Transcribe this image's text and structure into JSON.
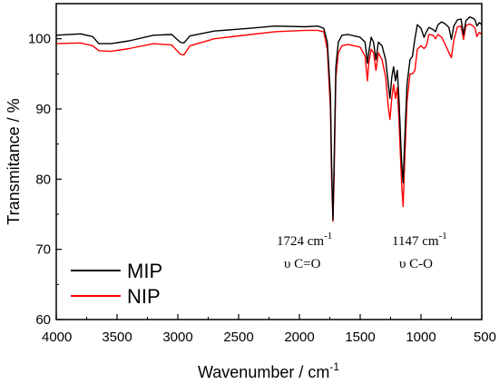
{
  "chart_data": {
    "type": "line",
    "xlabel": "Wavenumber / cm",
    "xlabel_sup": "-1",
    "ylabel": "Transmitance / %",
    "xlim": [
      4000,
      500
    ],
    "ylim": [
      60,
      105
    ],
    "x_ticks": [
      4000,
      3500,
      3000,
      2500,
      2000,
      1500,
      1000,
      500
    ],
    "y_ticks": [
      60,
      70,
      80,
      90,
      100
    ],
    "grid": false,
    "legend_position": "bottom-left",
    "series": [
      {
        "name": "MIP",
        "color": "#000000",
        "points": [
          [
            4000,
            100.5
          ],
          [
            3800,
            100.7
          ],
          [
            3700,
            100.3
          ],
          [
            3650,
            99.3
          ],
          [
            3550,
            99.3
          ],
          [
            3400,
            99.7
          ],
          [
            3200,
            100.5
          ],
          [
            3050,
            100.6
          ],
          [
            2980,
            99.5
          ],
          [
            2950,
            99.4
          ],
          [
            2900,
            100.4
          ],
          [
            2700,
            101.1
          ],
          [
            2400,
            101.5
          ],
          [
            2200,
            101.8
          ],
          [
            1950,
            101.7
          ],
          [
            1850,
            101.8
          ],
          [
            1800,
            101.5
          ],
          [
            1770,
            99.5
          ],
          [
            1745,
            92.0
          ],
          [
            1735,
            82.0
          ],
          [
            1724,
            74.2
          ],
          [
            1715,
            82.0
          ],
          [
            1700,
            96.0
          ],
          [
            1680,
            99.5
          ],
          [
            1650,
            100.5
          ],
          [
            1600,
            100.6
          ],
          [
            1500,
            100.2
          ],
          [
            1460,
            99.5
          ],
          [
            1440,
            96.5
          ],
          [
            1430,
            98.0
          ],
          [
            1410,
            100.2
          ],
          [
            1390,
            99.5
          ],
          [
            1370,
            97.0
          ],
          [
            1350,
            99.5
          ],
          [
            1320,
            99.0
          ],
          [
            1290,
            97.0
          ],
          [
            1270,
            93.8
          ],
          [
            1255,
            91.5
          ],
          [
            1240,
            94.5
          ],
          [
            1225,
            96.0
          ],
          [
            1210,
            94.0
          ],
          [
            1195,
            95.5
          ],
          [
            1180,
            91.0
          ],
          [
            1160,
            82.5
          ],
          [
            1147,
            79.5
          ],
          [
            1135,
            85.0
          ],
          [
            1115,
            93.5
          ],
          [
            1090,
            97.0
          ],
          [
            1070,
            97.5
          ],
          [
            1050,
            100.0
          ],
          [
            1030,
            102.0
          ],
          [
            1000,
            101.5
          ],
          [
            975,
            100.2
          ],
          [
            955,
            101.0
          ],
          [
            935,
            101.6
          ],
          [
            900,
            101.3
          ],
          [
            880,
            101.0
          ],
          [
            860,
            102.0
          ],
          [
            830,
            102.4
          ],
          [
            800,
            102.1
          ],
          [
            770,
            101.6
          ],
          [
            750,
            99.9
          ],
          [
            730,
            101.8
          ],
          [
            700,
            102.7
          ],
          [
            670,
            102.8
          ],
          [
            650,
            100.6
          ],
          [
            630,
            102.6
          ],
          [
            600,
            103.1
          ],
          [
            570,
            102.9
          ],
          [
            555,
            102.7
          ],
          [
            540,
            101.8
          ],
          [
            520,
            102.3
          ],
          [
            500,
            102.0
          ]
        ]
      },
      {
        "name": "NIP",
        "color": "#ff0000",
        "points": [
          [
            4000,
            99.3
          ],
          [
            3800,
            99.4
          ],
          [
            3700,
            99.0
          ],
          [
            3650,
            98.3
          ],
          [
            3550,
            98.2
          ],
          [
            3400,
            98.6
          ],
          [
            3200,
            99.3
          ],
          [
            3050,
            99.1
          ],
          [
            2980,
            97.8
          ],
          [
            2950,
            97.7
          ],
          [
            2900,
            99.0
          ],
          [
            2700,
            100.0
          ],
          [
            2400,
            100.6
          ],
          [
            2200,
            101.0
          ],
          [
            1950,
            101.2
          ],
          [
            1850,
            101.2
          ],
          [
            1800,
            101.0
          ],
          [
            1770,
            98.5
          ],
          [
            1745,
            90.0
          ],
          [
            1735,
            80.0
          ],
          [
            1724,
            74.0
          ],
          [
            1715,
            80.0
          ],
          [
            1700,
            94.5
          ],
          [
            1680,
            98.0
          ],
          [
            1650,
            99.0
          ],
          [
            1600,
            99.2
          ],
          [
            1500,
            98.8
          ],
          [
            1460,
            97.5
          ],
          [
            1440,
            94.0
          ],
          [
            1430,
            96.5
          ],
          [
            1410,
            98.5
          ],
          [
            1390,
            98.0
          ],
          [
            1370,
            95.5
          ],
          [
            1350,
            98.0
          ],
          [
            1320,
            97.0
          ],
          [
            1290,
            94.5
          ],
          [
            1270,
            90.5
          ],
          [
            1255,
            88.5
          ],
          [
            1240,
            91.5
          ],
          [
            1225,
            93.5
          ],
          [
            1210,
            91.5
          ],
          [
            1195,
            93.0
          ],
          [
            1180,
            88.0
          ],
          [
            1160,
            79.5
          ],
          [
            1147,
            76.1
          ],
          [
            1135,
            82.0
          ],
          [
            1115,
            91.0
          ],
          [
            1090,
            95.0
          ],
          [
            1070,
            95.0
          ],
          [
            1050,
            95.5
          ],
          [
            1030,
            98.5
          ],
          [
            1000,
            99.0
          ],
          [
            975,
            98.6
          ],
          [
            955,
            99.0
          ],
          [
            935,
            100.6
          ],
          [
            900,
            100.5
          ],
          [
            880,
            100.0
          ],
          [
            860,
            100.6
          ],
          [
            830,
            100.2
          ],
          [
            800,
            99.2
          ],
          [
            770,
            98.0
          ],
          [
            750,
            97.3
          ],
          [
            730,
            99.8
          ],
          [
            700,
            101.7
          ],
          [
            670,
            101.8
          ],
          [
            650,
            99.9
          ],
          [
            630,
            101.9
          ],
          [
            600,
            102.1
          ],
          [
            570,
            101.8
          ],
          [
            555,
            101.5
          ],
          [
            540,
            100.3
          ],
          [
            520,
            100.9
          ],
          [
            500,
            100.6
          ]
        ]
      }
    ],
    "annotations": [
      {
        "text": "1724 cm",
        "sup": "-1",
        "x": 1724,
        "line2": "υ C=O"
      },
      {
        "text": "1147 cm",
        "sup": "-1",
        "x": 1147,
        "line2": "υ C-O"
      }
    ]
  }
}
